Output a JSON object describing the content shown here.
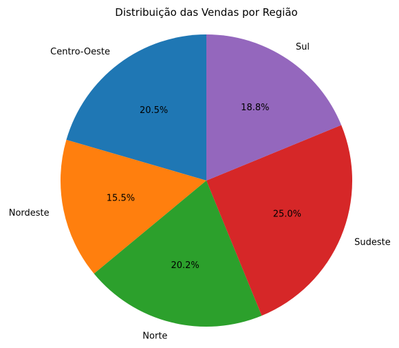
{
  "chart_data": {
    "type": "pie",
    "title": "Distribuição das Vendas por Região",
    "start_angle_deg": 90,
    "direction": "counterclockwise",
    "slices": [
      {
        "label": "Centro-Oeste",
        "value": 20.5,
        "pct_label": "20.5%",
        "color": "#1f77b4"
      },
      {
        "label": "Nordeste",
        "value": 15.5,
        "pct_label": "15.5%",
        "color": "#ff7f0e"
      },
      {
        "label": "Norte",
        "value": 20.2,
        "pct_label": "20.2%",
        "color": "#2ca02c"
      },
      {
        "label": "Sudeste",
        "value": 25.0,
        "pct_label": "25.0%",
        "color": "#d62728"
      },
      {
        "label": "Sul",
        "value": 18.8,
        "pct_label": "18.8%",
        "color": "#9467bd"
      }
    ]
  }
}
